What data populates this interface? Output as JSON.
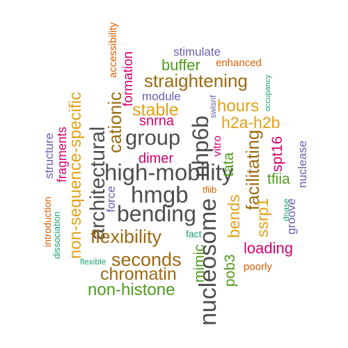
{
  "palette": {
    "dark": "#4d4d4d",
    "brown": "#9b6a12",
    "orange": "#e3a017",
    "green": "#4f9a1f",
    "magenta": "#d4006e",
    "purple": "#6a5eb0",
    "teal": "#1b9e77",
    "rust": "#d95f02"
  },
  "words": [
    {
      "text": "high-mobility",
      "color": "#4d4d4d",
      "vertical": false
    },
    {
      "text": "nucleosome",
      "color": "#4d4d4d",
      "vertical": true
    },
    {
      "text": "hmgb",
      "color": "#4d4d4d",
      "vertical": false
    },
    {
      "text": "bending",
      "color": "#4d4d4d",
      "vertical": false
    },
    {
      "text": "group",
      "color": "#4d4d4d",
      "vertical": false
    },
    {
      "text": "nhp6b",
      "color": "#4d4d4d",
      "vertical": true
    },
    {
      "text": "architectural",
      "color": "#4d4d4d",
      "vertical": true
    },
    {
      "text": "straightening",
      "color": "#9b6a12",
      "vertical": false
    },
    {
      "text": "flexibility",
      "color": "#9b6a12",
      "vertical": false
    },
    {
      "text": "seconds",
      "color": "#9b6a12",
      "vertical": false
    },
    {
      "text": "chromatin",
      "color": "#9b6a12",
      "vertical": false
    },
    {
      "text": "cationic",
      "color": "#9b6a12",
      "vertical": true
    },
    {
      "text": "facilitating",
      "color": "#9b6a12",
      "vertical": true
    },
    {
      "text": "non-sequence-specific",
      "color": "#e3a017",
      "vertical": true
    },
    {
      "text": "stable",
      "color": "#e3a017",
      "vertical": false
    },
    {
      "text": "hours",
      "color": "#e3a017",
      "vertical": false
    },
    {
      "text": "h2a-h2b",
      "color": "#e3a017",
      "vertical": false
    },
    {
      "text": "ssrp1",
      "color": "#e3a017",
      "vertical": true
    },
    {
      "text": "bends",
      "color": "#e3a017",
      "vertical": true
    },
    {
      "text": "non-histone",
      "color": "#4f9a1f",
      "vertical": false
    },
    {
      "text": "buffer",
      "color": "#4f9a1f",
      "vertical": false
    },
    {
      "text": "mimic",
      "color": "#4f9a1f",
      "vertical": true
    },
    {
      "text": "pob3",
      "color": "#4f9a1f",
      "vertical": true
    },
    {
      "text": "tata",
      "color": "#4f9a1f",
      "vertical": true
    },
    {
      "text": "tfiia",
      "color": "#4f9a1f",
      "vertical": false
    },
    {
      "text": "loading",
      "color": "#d4006e",
      "vertical": false
    },
    {
      "text": "spt16",
      "color": "#d4006e",
      "vertical": true
    },
    {
      "text": "snrna",
      "color": "#d4006e",
      "vertical": false
    },
    {
      "text": "dimer",
      "color": "#d4006e",
      "vertical": false
    },
    {
      "text": "formation",
      "color": "#d4006e",
      "vertical": true
    },
    {
      "text": "fragments",
      "color": "#d4006e",
      "vertical": true
    },
    {
      "text": "vitro",
      "color": "#d4006e",
      "vertical": true
    },
    {
      "text": "module",
      "color": "#6a5eb0",
      "vertical": false
    },
    {
      "text": "stimulate",
      "color": "#6a5eb0",
      "vertical": false
    },
    {
      "text": "nuclease",
      "color": "#6a5eb0",
      "vertical": true
    },
    {
      "text": "groove",
      "color": "#6a5eb0",
      "vertical": true
    },
    {
      "text": "structure",
      "color": "#6a5eb0",
      "vertical": true
    },
    {
      "text": "force",
      "color": "#6a5eb0",
      "vertical": true
    },
    {
      "text": "swisnf",
      "color": "#6a5eb0",
      "vertical": true
    },
    {
      "text": "enhanced",
      "color": "#d95f02",
      "vertical": false
    },
    {
      "text": "accessibility",
      "color": "#d95f02",
      "vertical": true
    },
    {
      "text": "tfiib",
      "color": "#d95f02",
      "vertical": false
    },
    {
      "text": "poorly",
      "color": "#d95f02",
      "vertical": false
    },
    {
      "text": "introduction",
      "color": "#d95f02",
      "vertical": true
    },
    {
      "text": "occupancy",
      "color": "#1b9e77",
      "vertical": true
    },
    {
      "text": "fact",
      "color": "#1b9e77",
      "vertical": false
    },
    {
      "text": "flexible",
      "color": "#1b9e77",
      "vertical": false
    },
    {
      "text": "dissociation",
      "color": "#1b9e77",
      "vertical": true
    },
    {
      "text": "dnase",
      "color": "#1b9e77",
      "vertical": true
    }
  ]
}
